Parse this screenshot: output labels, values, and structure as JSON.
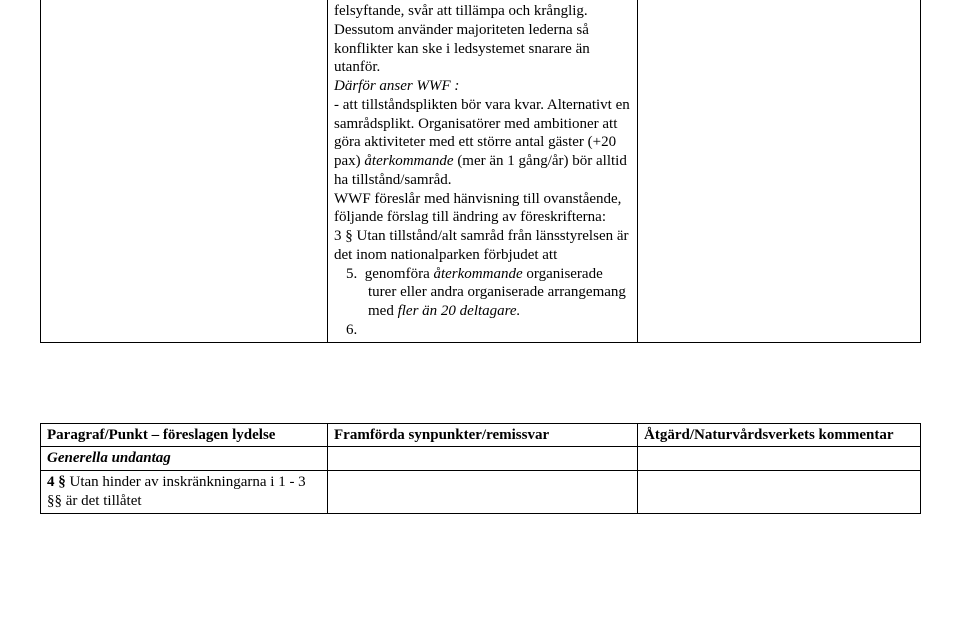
{
  "upper": {
    "cell": {
      "p1": "felsyftande, svår att tillämpa och krånglig. Dessutom använder majoriteten lederna så konflikter kan ske i ledsystemet snarare än utanför.",
      "p2a": "Därför anser WWF :",
      "p2b": "- att tillståndsplikten bör vara kvar. Alternativt en samrådsplikt. Organisatörer med ambitioner att göra aktiviteter med ett större antal gäster (+20 pax) ",
      "p2b_i": "återkommande",
      "p2b2": " (mer än 1 gång/år) bör alltid ha tillstånd/samråd.",
      "p3": "WWF föreslår med hänvisning till ovanstående, följande förslag till ändring av föreskrifterna:",
      "p4": "3 § Utan tillstånd/alt samråd från länsstyrelsen är det inom nationalparken förbjudet att",
      "li5_num": "5.",
      "li5a": "genomföra ",
      "li5a_i": "återkommande",
      "li5b": " organiserade turer eller andra organiserade arrangemang med ",
      "li5b_i": "fler än 20 deltagare.",
      "li6": "6."
    }
  },
  "lower": {
    "h1": "Paragraf/Punkt – föreslagen lydelse",
    "h2": "Framförda synpunkter/remissvar",
    "h3": "Åtgärd/Naturvårdsverkets kommentar",
    "r1c1": "Generella undantag",
    "r2c1a": "4 §",
    "r2c1b": " Utan hinder av inskränkningarna i 1 - 3 §§ är det tillåtet"
  }
}
